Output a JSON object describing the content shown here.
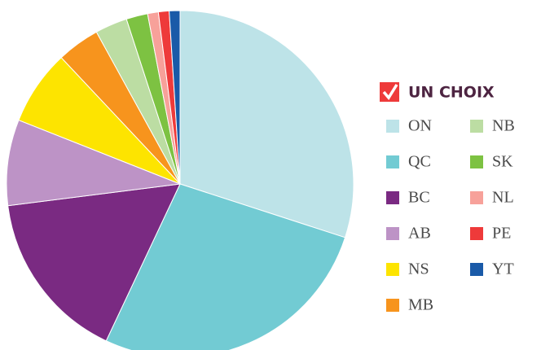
{
  "chart_data": {
    "type": "pie",
    "legend_title": "UN CHOIX",
    "categories": [
      "ON",
      "QC",
      "BC",
      "AB",
      "NS",
      "MB",
      "NB",
      "SK",
      "NL",
      "PE",
      "YT"
    ],
    "values": [
      30,
      27,
      16,
      8,
      7,
      4,
      3,
      2,
      1,
      1,
      1
    ],
    "colors": [
      "#bde3e8",
      "#72cbd3",
      "#7a2a82",
      "#bd93c6",
      "#fde400",
      "#f7941d",
      "#bcdda3",
      "#7dc242",
      "#f7a19a",
      "#ee3a3a",
      "#1a5aa8"
    ],
    "legend": "right"
  }
}
